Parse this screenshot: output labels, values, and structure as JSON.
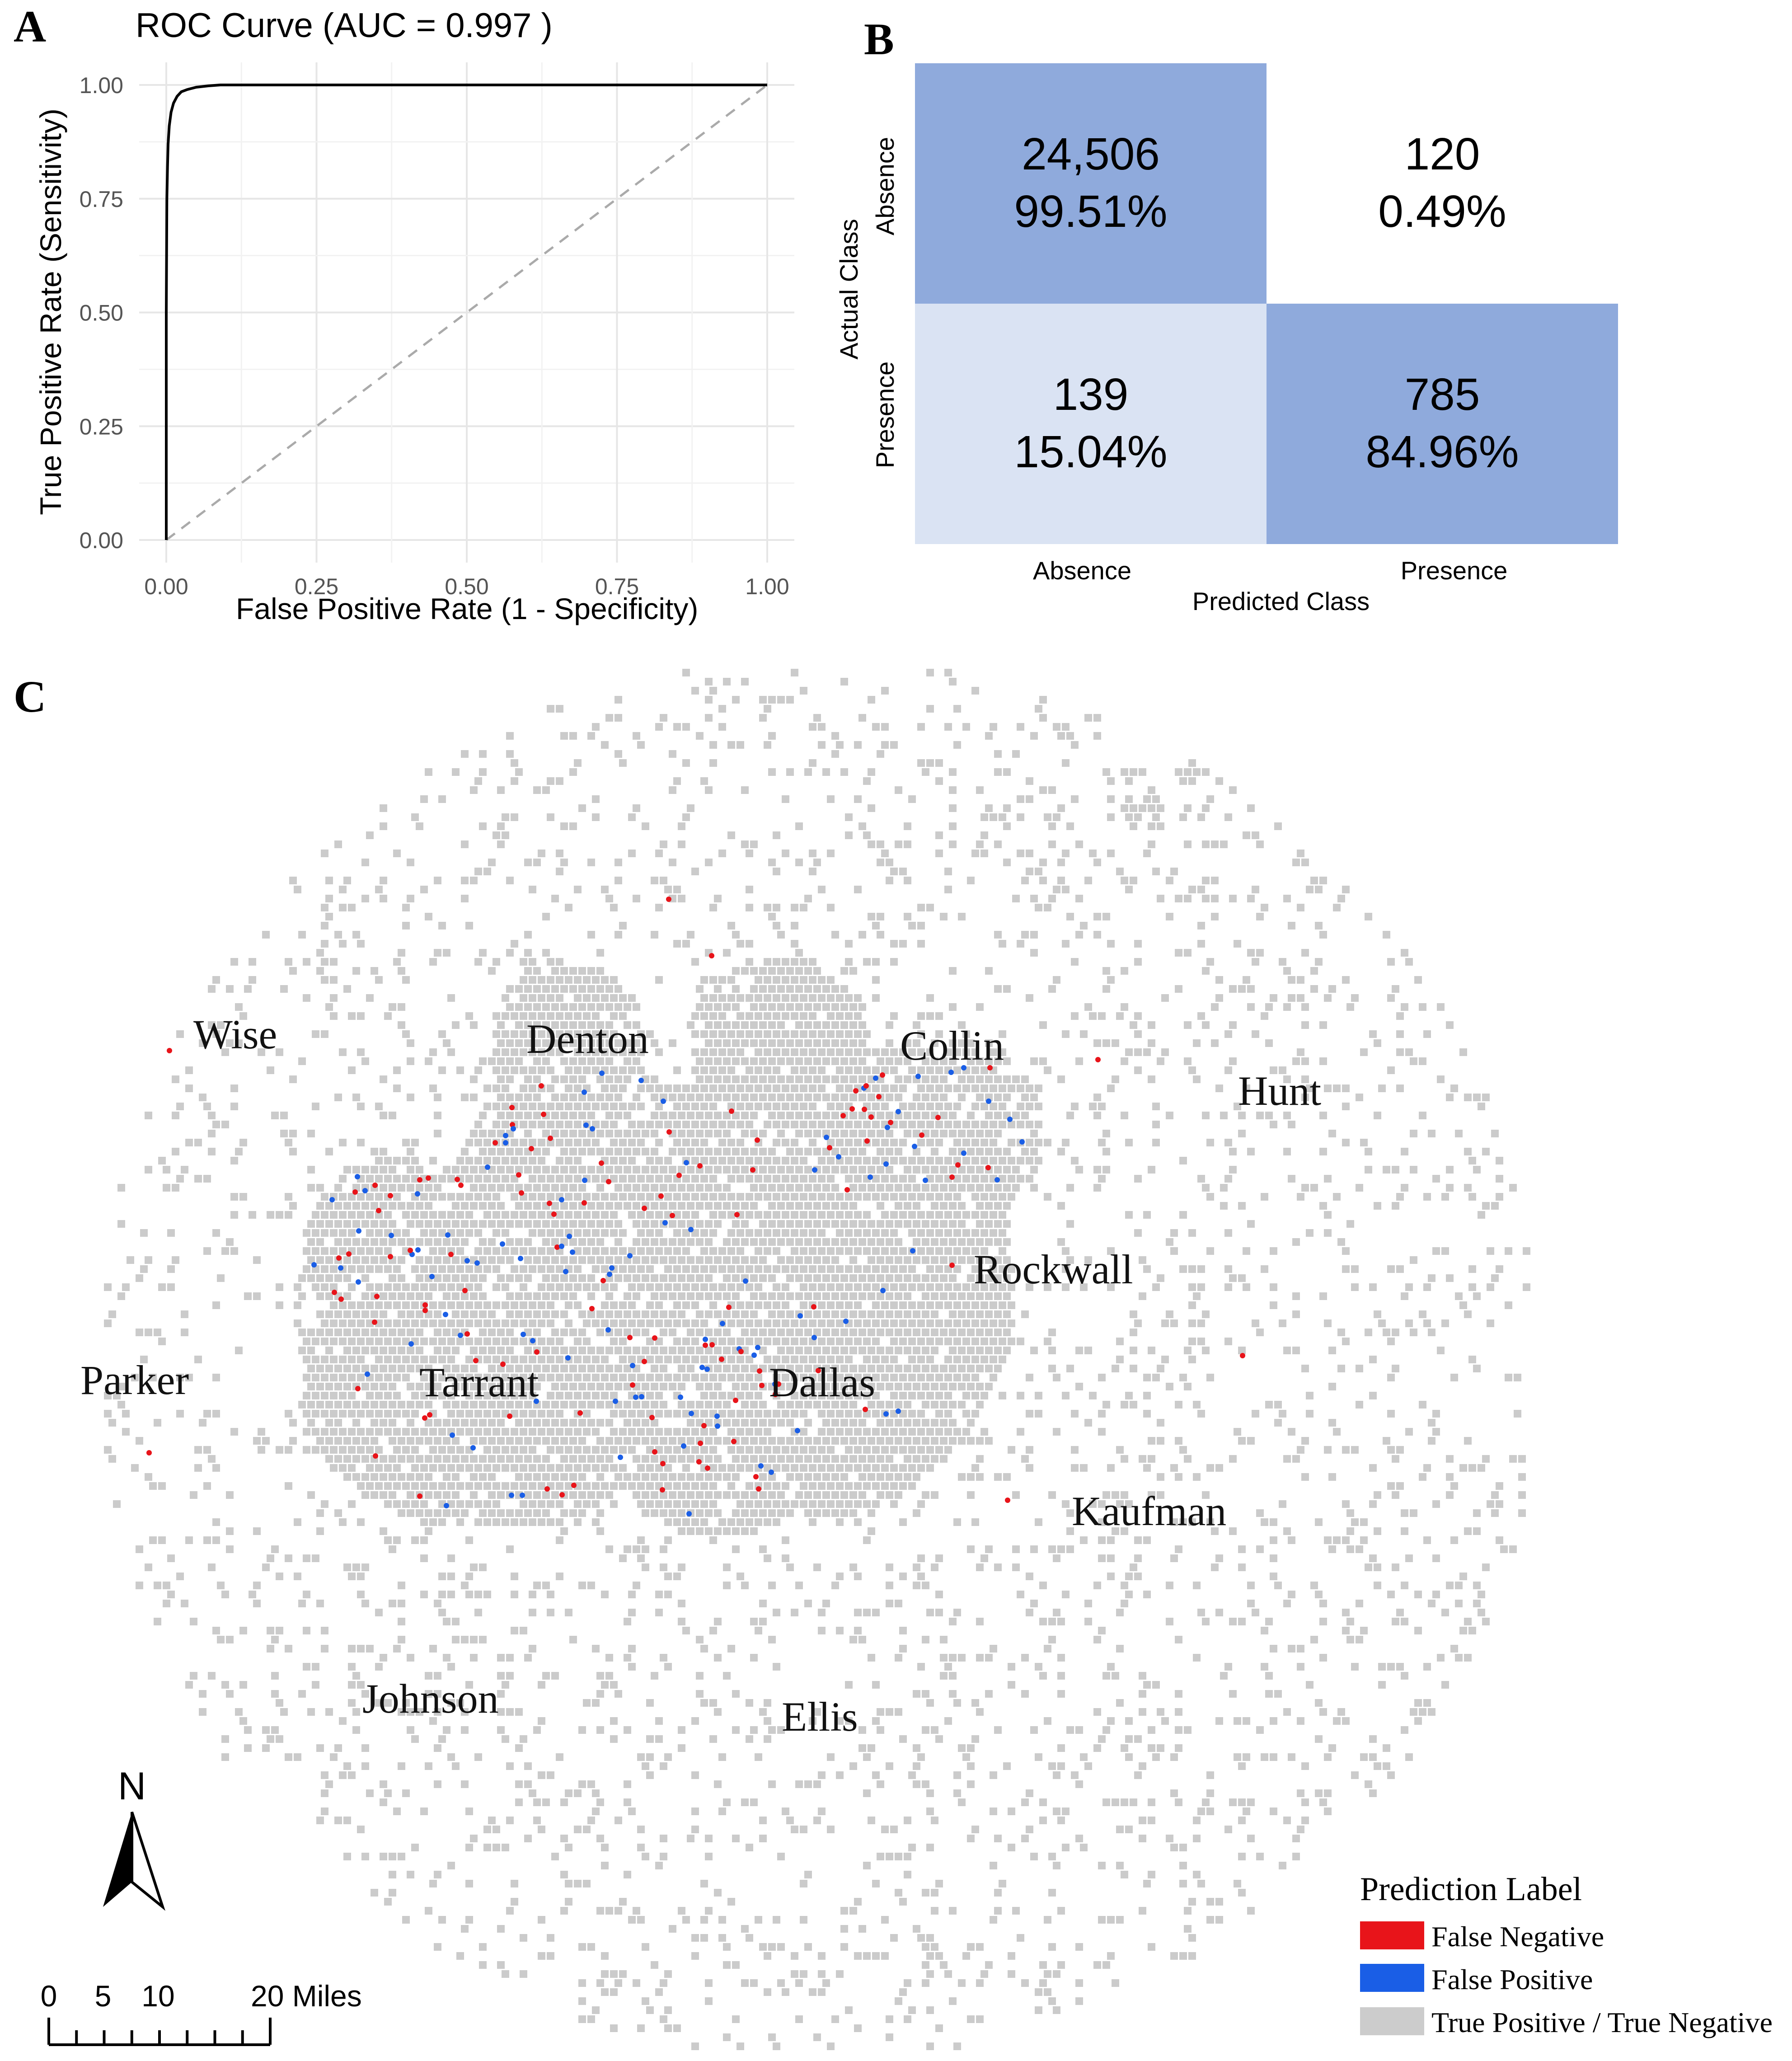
{
  "panel_labels": {
    "a": "A",
    "b": "B",
    "c": "C"
  },
  "chart_data": [
    {
      "type": "line",
      "title": "ROC Curve (AUC =  0.997 )",
      "xlabel": "False Positive Rate (1 - Specificity)",
      "ylabel": "True Positive Rate (Sensitivity)",
      "xlim": [
        0,
        1
      ],
      "ylim": [
        0,
        1
      ],
      "xticks": [
        "0.00",
        "0.25",
        "0.50",
        "0.75",
        "1.00"
      ],
      "yticks": [
        "0.00",
        "0.25",
        "0.50",
        "0.75",
        "1.00"
      ],
      "grid": true,
      "series": [
        {
          "name": "ROC",
          "x": [
            0,
            0,
            0.001,
            0.002,
            0.003,
            0.005,
            0.008,
            0.012,
            0.018,
            0.025,
            0.035,
            0.05,
            0.07,
            0.09,
            0.2,
            0.5,
            1.0
          ],
          "y": [
            0,
            0.5,
            0.75,
            0.82,
            0.87,
            0.91,
            0.94,
            0.96,
            0.975,
            0.985,
            0.99,
            0.995,
            0.998,
            1.0,
            1.0,
            1.0,
            1.0
          ]
        },
        {
          "name": "chance",
          "x": [
            0,
            1
          ],
          "y": [
            0,
            1
          ],
          "style": "dashed"
        }
      ],
      "colors": {
        "curve": "#000000",
        "diagonal": "#aaaaaa",
        "grid": "#e6e6e6"
      }
    },
    {
      "type": "heatmap",
      "title": "",
      "xlabel": "Predicted Class",
      "ylabel": "Actual Class",
      "col_labels": [
        "Absence",
        "Presence"
      ],
      "row_labels": [
        "Absence",
        "Presence"
      ],
      "cells": [
        [
          {
            "count": "24,506",
            "pct": "99.51%",
            "value": 99.51
          },
          {
            "count": "120",
            "pct": "0.49%",
            "value": 0.49
          }
        ],
        [
          {
            "count": "139",
            "pct": "15.04%",
            "value": 15.04
          },
          {
            "count": "785",
            "pct": "84.96%",
            "value": 84.96
          }
        ]
      ],
      "colors": {
        "high": "#8faadc",
        "low": "#dae3f3",
        "none": "#ffffff"
      }
    }
  ],
  "map": {
    "counties": [
      "Wise",
      "Denton",
      "Collin",
      "Hunt",
      "Rockwall",
      "Parker",
      "Tarrant",
      "Dallas",
      "Kaufman",
      "Johnson",
      "Ellis"
    ],
    "north_label": "N",
    "scale_bar": {
      "labels": [
        "0",
        "5",
        "10",
        "20 Miles"
      ]
    },
    "legend": {
      "title": "Prediction Label",
      "items": [
        {
          "label": "False Negative",
          "color": "#e8141a"
        },
        {
          "label": "False Positive",
          "color": "#1a5ee6"
        },
        {
          "label": "True Positive / True Negative",
          "color": "#cccccc"
        }
      ]
    },
    "colors": {
      "cell": "#cbcbcb",
      "fn": "#e8141a",
      "fp": "#1a5ee6"
    }
  }
}
